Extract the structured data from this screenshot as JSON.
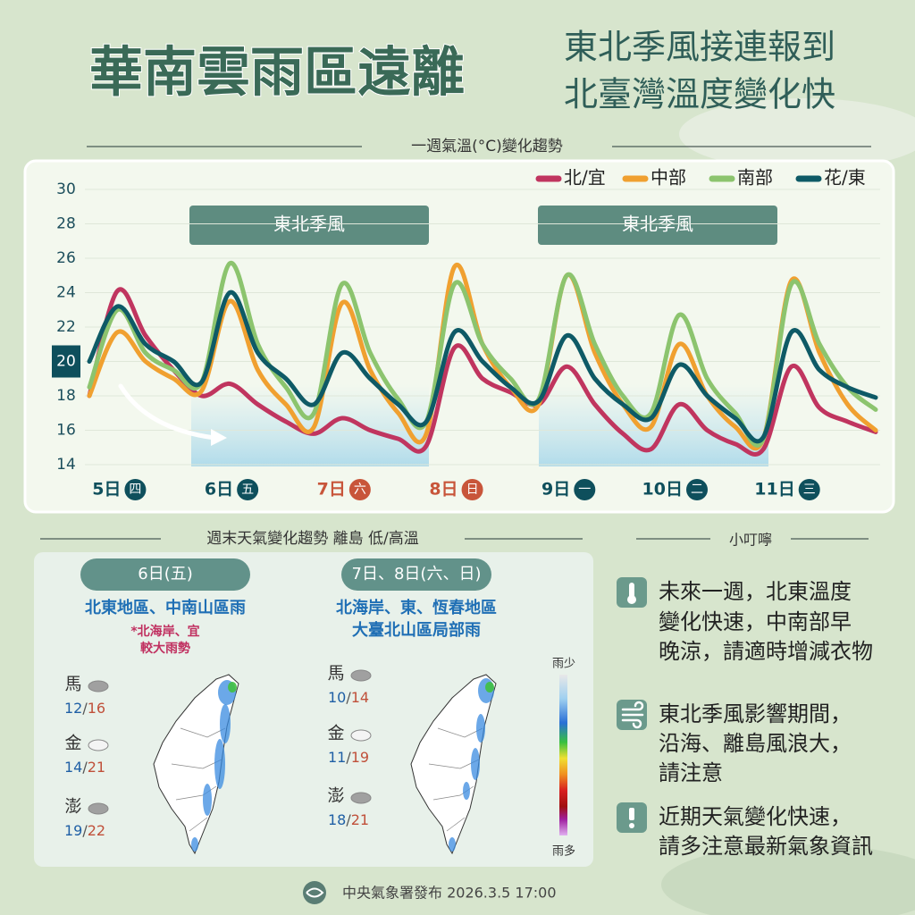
{
  "header": {
    "title": "華南雲雨區遠離",
    "subtitle": [
      "東北季風接連報到",
      "北臺灣溫度變化快"
    ]
  },
  "chart_data": {
    "type": "line",
    "title": "一週氣溫(°C)變化趨勢",
    "categories": [
      null,
      "5日",
      null,
      null,
      null,
      "6日",
      null,
      null,
      null,
      "7日",
      null,
      null,
      null,
      "8日",
      null,
      null,
      null,
      "9日",
      null,
      null,
      null,
      "10日",
      null,
      null,
      null,
      "11日",
      null,
      null,
      null
    ],
    "category_weekdays": [
      null,
      "四",
      null,
      null,
      null,
      "五",
      null,
      null,
      null,
      "六",
      null,
      null,
      null,
      "日",
      null,
      null,
      null,
      "一",
      null,
      null,
      null,
      "二",
      null,
      null,
      null,
      "三",
      null,
      null,
      null
    ],
    "category_colors": [
      null,
      "#0e4f5c",
      null,
      null,
      null,
      "#0e4f5c",
      null,
      null,
      null,
      "#c8553a",
      null,
      null,
      null,
      "#c8553a",
      null,
      null,
      null,
      "#0e4f5c",
      null,
      null,
      null,
      "#0e4f5c",
      null,
      null,
      null,
      "#0e4f5c",
      null,
      null,
      null
    ],
    "series": [
      {
        "name": "北/宜",
        "color": "#c0355f",
        "values": [
          18,
          24.1,
          21.5,
          19.5,
          18.0,
          18.7,
          17.5,
          16.5,
          15.8,
          16.7,
          16.0,
          15.5,
          15.1,
          20.8,
          19.0,
          18.2,
          17.5,
          19.7,
          17.5,
          15.8,
          14.9,
          17.5,
          16.0,
          15.2,
          14.9,
          19.7,
          17.3,
          16.5,
          15.9
        ]
      },
      {
        "name": "中部",
        "color": "#f0a030",
        "values": [
          18,
          21.7,
          20.0,
          19.0,
          18.3,
          23.5,
          19.5,
          17.5,
          16.2,
          23.4,
          19.5,
          17.0,
          15.8,
          25.5,
          21.0,
          18.5,
          17.5,
          25.0,
          20.5,
          17.5,
          16.2,
          21.0,
          18.0,
          16.2,
          15.5,
          24.7,
          20.5,
          17.5,
          16.0
        ]
      },
      {
        "name": "南部",
        "color": "#8cc46e",
        "values": [
          18.5,
          23.0,
          20.5,
          19.5,
          18.8,
          25.7,
          21.0,
          18.5,
          17.0,
          24.5,
          20.5,
          17.8,
          16.5,
          24.5,
          21.0,
          19.0,
          17.8,
          25.0,
          21.0,
          18.0,
          17.0,
          22.7,
          19.0,
          17.0,
          15.5,
          24.5,
          21.0,
          18.5,
          17.2
        ]
      },
      {
        "name": "花/東",
        "color": "#0e5a66",
        "values": [
          20,
          23.2,
          21.0,
          20.0,
          18.8,
          24.0,
          20.5,
          19.0,
          17.5,
          20.5,
          19.0,
          17.5,
          16.5,
          21.7,
          20.0,
          18.5,
          17.7,
          21.5,
          19.0,
          17.5,
          16.7,
          19.8,
          18.0,
          16.7,
          15.6,
          21.7,
          19.5,
          18.5,
          17.9
        ]
      }
    ],
    "ylim": [
      14,
      30
    ],
    "yticks": [
      14,
      16,
      18,
      20,
      22,
      24,
      26,
      28,
      30
    ],
    "highlight_y": 20,
    "grid": true,
    "legend": "top-right",
    "annotations": [
      "東北季風",
      "東北季風"
    ]
  },
  "weekend_panel": {
    "title": "週末天氣變化趨勢 離島 低/高溫",
    "separator": "/",
    "columns": [
      {
        "date": "6日(五)",
        "summary": [
          "北東地區、中南山區雨"
        ],
        "note": [
          "*北海岸、宜",
          "較大雨勢"
        ],
        "islands": [
          {
            "name": "馬",
            "low": 12,
            "high": 16
          },
          {
            "name": "金",
            "low": 14,
            "high": 21
          },
          {
            "name": "澎",
            "low": 19,
            "high": 22
          }
        ]
      },
      {
        "date": "7日、8日(六、日)",
        "summary": [
          "北海岸、東、恆春地區",
          "大臺北山區局部雨"
        ],
        "note": [],
        "islands": [
          {
            "name": "馬",
            "low": 10,
            "high": 14
          },
          {
            "name": "金",
            "low": 11,
            "high": 19
          },
          {
            "name": "澎",
            "low": 18,
            "high": 21
          }
        ]
      }
    ],
    "rain_legend": [
      "雨少",
      "雨多"
    ]
  },
  "tips": {
    "title": "小叮嚀",
    "items": [
      [
        "未來一週，北東溫度",
        "變化快速，中南部早",
        "晚涼，請適時增減衣物"
      ],
      [
        "東北季風影響期間，",
        "沿海、離島風浪大，",
        "請注意"
      ],
      [
        "近期天氣變化快速，",
        "請多注意最新氣象資訊"
      ]
    ]
  },
  "footer": "中央氣象署發布 2026.3.5 17:00"
}
